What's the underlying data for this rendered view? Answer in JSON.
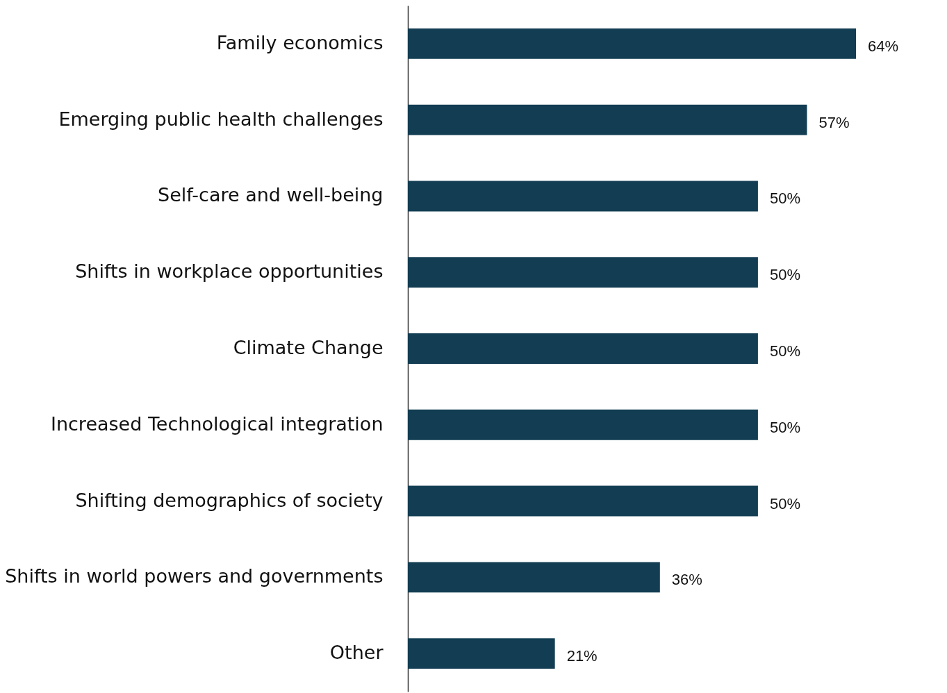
{
  "chart_data": {
    "type": "bar",
    "orientation": "horizontal",
    "categories": [
      "Family economics",
      "Emerging public health challenges",
      "Self-care and well-being",
      "Shifts in workplace opportunities",
      "Climate Change",
      "Increased Technological integration",
      "Shifting demographics of society",
      "Shifts in world powers and governments",
      "Other"
    ],
    "values": [
      64,
      57,
      50,
      50,
      50,
      50,
      50,
      36,
      21
    ],
    "value_labels": [
      "64%",
      "57%",
      "50%",
      "50%",
      "50%",
      "50%",
      "50%",
      "36%",
      "21%"
    ],
    "color": "#123d52",
    "grid": false
  }
}
